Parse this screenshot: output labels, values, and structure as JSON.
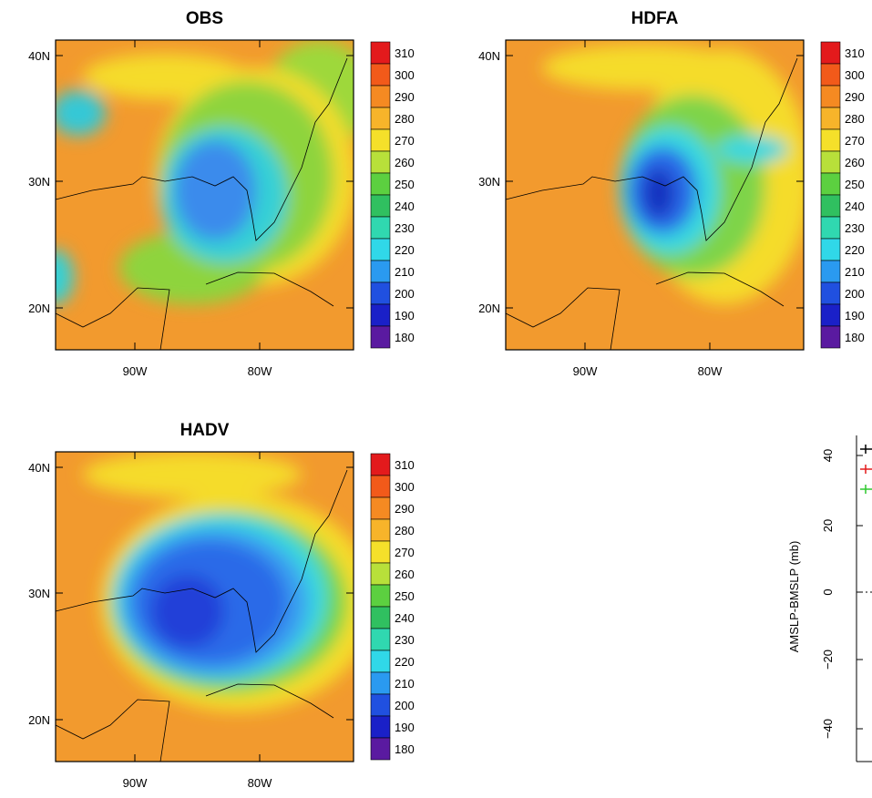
{
  "panels": [
    {
      "title": "OBS",
      "lat_labels": [
        "40N",
        "30N",
        "20N"
      ],
      "lon_labels": [
        "90W",
        "80W"
      ],
      "colorbar_labels": [
        "310",
        "300",
        "290",
        "280",
        "270",
        "260",
        "250",
        "240",
        "230",
        "220",
        "210",
        "200",
        "190",
        "180"
      ]
    },
    {
      "title": "HDFA",
      "lat_labels": [
        "40N",
        "30N",
        "20N"
      ],
      "lon_labels": [
        "90W",
        "80W"
      ],
      "colorbar_labels": [
        "310",
        "300",
        "290",
        "280",
        "270",
        "260",
        "250",
        "240",
        "230",
        "220",
        "210",
        "200",
        "190",
        "180"
      ]
    },
    {
      "title": "HADV",
      "lat_labels": [
        "40N",
        "30N",
        "20N"
      ],
      "lon_labels": [
        "90W",
        "80W"
      ],
      "colorbar_labels": [
        "310",
        "300",
        "290",
        "280",
        "270",
        "260",
        "250",
        "240",
        "230",
        "220",
        "210",
        "200",
        "190",
        "180"
      ]
    }
  ],
  "side_chart": {
    "y_label": "AMSLP-BMSLP (mb)",
    "yticks": [
      "40",
      "20",
      "0",
      "−20",
      "−40"
    ]
  }
}
